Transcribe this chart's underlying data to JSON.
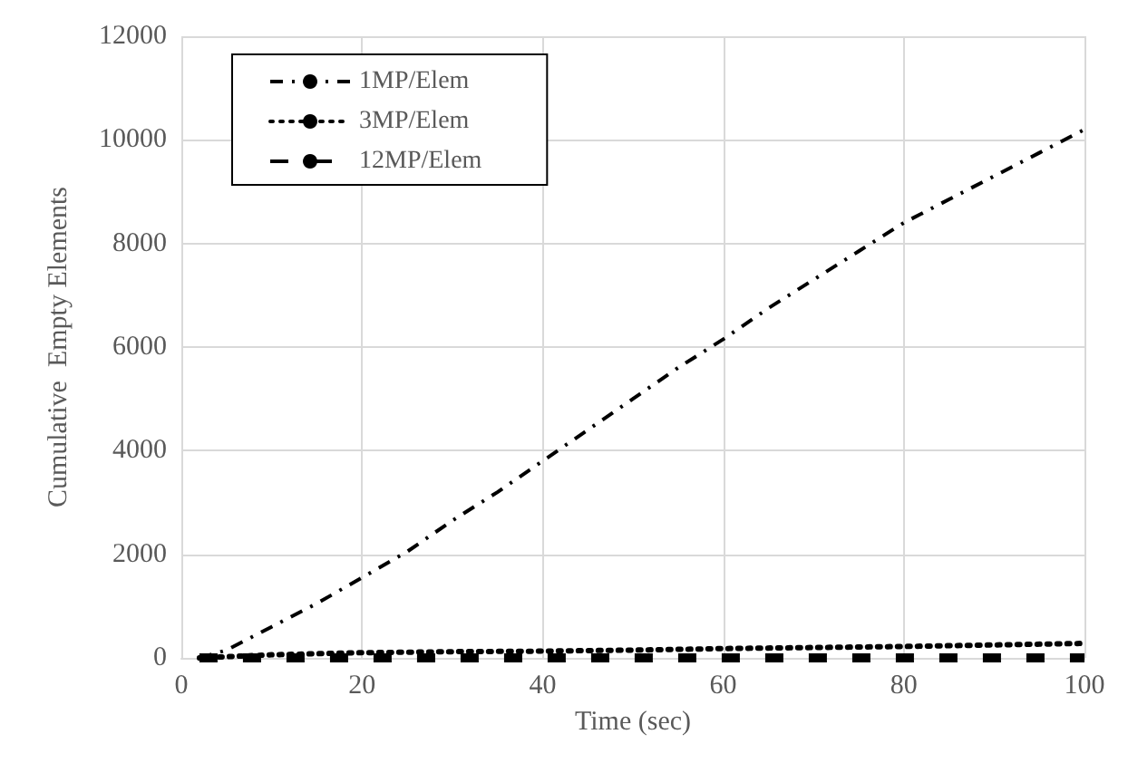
{
  "chart_data": {
    "type": "line",
    "xlabel": "Time (sec)",
    "ylabel": "Cumulative  Empty Elements",
    "xlim": [
      0,
      100
    ],
    "xticks": [
      0,
      20,
      40,
      60,
      80,
      100
    ],
    "ylim": [
      0,
      12000
    ],
    "yticks": [
      0,
      2000,
      4000,
      6000,
      8000,
      10000,
      12000
    ],
    "grid": true,
    "legend": "top left",
    "marker": "none",
    "series": [
      {
        "name": "1MP/Elem",
        "color": "#000000",
        "line_style": "dashdot",
        "x": [
          2,
          5,
          10,
          15,
          20,
          25,
          30,
          35,
          40,
          45,
          50,
          55,
          60,
          65,
          70,
          75,
          80,
          85,
          90,
          95,
          100
        ],
        "values": [
          0,
          150,
          600,
          1050,
          1550,
          2050,
          2650,
          3200,
          3800,
          4400,
          5000,
          5600,
          6150,
          6750,
          7300,
          7850,
          8400,
          8850,
          9300,
          9750,
          10200
        ]
      },
      {
        "name": "3MP/Elem",
        "color": "#000000",
        "line_style": "dotted",
        "x": [
          2,
          10,
          20,
          30,
          40,
          50,
          60,
          70,
          80,
          90,
          100
        ],
        "values": [
          0,
          60,
          100,
          120,
          130,
          150,
          180,
          200,
          220,
          250,
          280
        ]
      },
      {
        "name": "12MP/Elem",
        "color": "#000000",
        "line_style": "dashed",
        "x": [
          2,
          100
        ],
        "values": [
          0,
          0
        ]
      }
    ]
  }
}
